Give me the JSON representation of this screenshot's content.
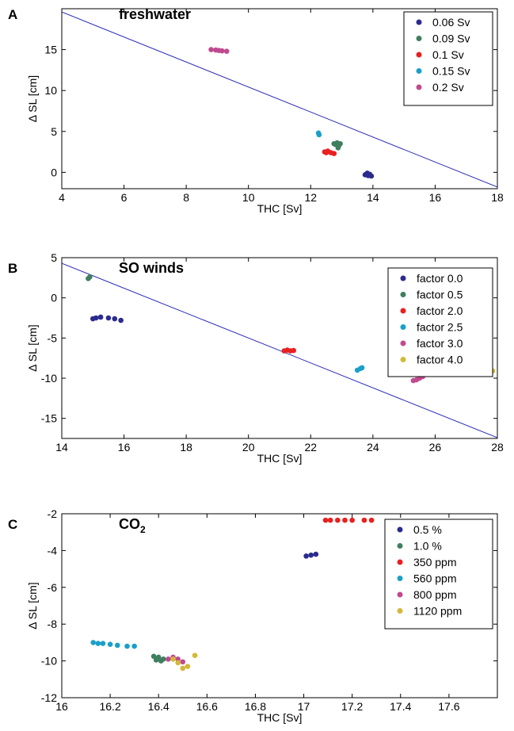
{
  "chart_data": [
    {
      "type": "scatter",
      "panel_letter": "A",
      "title": "freshwater",
      "xlabel": "THC [Sv]",
      "ylabel": "Δ SL [cm]",
      "xlim": [
        4,
        18
      ],
      "ylim": [
        -2,
        20
      ],
      "xticks": [
        4,
        6,
        8,
        10,
        12,
        14,
        16,
        18
      ],
      "yticks": [
        0,
        5,
        10,
        15
      ],
      "legend_position": "top-right",
      "line": {
        "x": [
          4,
          18
        ],
        "y": [
          19.6,
          -1.8
        ],
        "color": "#2b2bb5"
      },
      "series": [
        {
          "name": "0.06 Sv",
          "color": "#2b2b8f",
          "points": [
            [
              13.75,
              -0.3
            ],
            [
              13.8,
              -0.2
            ],
            [
              13.85,
              -0.4
            ],
            [
              13.9,
              -0.25
            ],
            [
              13.95,
              -0.45
            ],
            [
              13.82,
              -0.1
            ]
          ]
        },
        {
          "name": "0.09 Sv",
          "color": "#3f7f5f",
          "points": [
            [
              12.75,
              3.5
            ],
            [
              12.8,
              3.4
            ],
            [
              12.85,
              3.6
            ],
            [
              12.9,
              3.2
            ],
            [
              12.95,
              3.5
            ],
            [
              12.88,
              3.0
            ]
          ]
        },
        {
          "name": "0.1 Sv",
          "color": "#e82020",
          "points": [
            [
              12.45,
              2.5
            ],
            [
              12.5,
              2.4
            ],
            [
              12.55,
              2.6
            ],
            [
              12.65,
              2.4
            ],
            [
              12.75,
              2.3
            ]
          ]
        },
        {
          "name": "0.15 Sv",
          "color": "#1aa0c8",
          "points": [
            [
              12.25,
              4.8
            ],
            [
              12.27,
              4.6
            ]
          ]
        },
        {
          "name": "0.2 Sv",
          "color": "#c04a90",
          "points": [
            [
              8.8,
              15.0
            ],
            [
              8.95,
              14.95
            ],
            [
              9.05,
              14.9
            ],
            [
              9.15,
              14.85
            ],
            [
              9.3,
              14.8
            ]
          ]
        }
      ]
    },
    {
      "type": "scatter",
      "panel_letter": "B",
      "title": "SO winds",
      "xlabel": "THC [Sv]",
      "ylabel": "Δ SL [cm]",
      "xlim": [
        14,
        28
      ],
      "ylim": [
        -17.5,
        5
      ],
      "xticks": [
        14,
        16,
        18,
        20,
        22,
        24,
        26,
        28
      ],
      "yticks": [
        5,
        0,
        -5,
        -10,
        -15
      ],
      "legend_position": "top-right",
      "line": {
        "x": [
          14,
          28
        ],
        "y": [
          4.3,
          -17.4
        ],
        "color": "#2b2bb5"
      },
      "series": [
        {
          "name": "factor 0.0",
          "color": "#2b2b8f",
          "points": [
            [
              15.0,
              -2.6
            ],
            [
              15.1,
              -2.5
            ],
            [
              15.25,
              -2.4
            ],
            [
              15.5,
              -2.5
            ],
            [
              15.7,
              -2.6
            ],
            [
              15.9,
              -2.8
            ]
          ]
        },
        {
          "name": "factor 0.5",
          "color": "#3f7f5f",
          "points": [
            [
              14.85,
              2.4
            ],
            [
              14.9,
              2.6
            ]
          ]
        },
        {
          "name": "factor 2.0",
          "color": "#e82020",
          "points": [
            [
              21.15,
              -6.6
            ],
            [
              21.25,
              -6.5
            ],
            [
              21.35,
              -6.6
            ],
            [
              21.45,
              -6.55
            ]
          ]
        },
        {
          "name": "factor 2.5",
          "color": "#1aa0c8",
          "points": [
            [
              23.5,
              -9.0
            ],
            [
              23.6,
              -8.8
            ],
            [
              23.65,
              -8.7
            ]
          ]
        },
        {
          "name": "factor 3.0",
          "color": "#c04a90",
          "points": [
            [
              25.3,
              -10.3
            ],
            [
              25.4,
              -10.2
            ],
            [
              25.5,
              -10.0
            ],
            [
              25.6,
              -9.8
            ]
          ]
        },
        {
          "name": "factor 4.0",
          "color": "#d4b838",
          "points": [
            [
              27.5,
              -9.5
            ],
            [
              27.6,
              -9.4
            ],
            [
              27.75,
              -9.3
            ],
            [
              27.85,
              -9.1
            ]
          ]
        }
      ]
    },
    {
      "type": "scatter",
      "panel_letter": "C",
      "title": "CO",
      "title_sub": "2",
      "xlabel": "THC [Sv]",
      "ylabel": "Δ SL [cm]",
      "xlim": [
        16,
        17.8
      ],
      "ylim": [
        -12,
        -2
      ],
      "xticks": [
        16,
        16.2,
        16.4,
        16.6,
        16.8,
        17,
        17.2,
        17.4,
        17.6
      ],
      "yticks": [
        -2,
        -4,
        -6,
        -8,
        -10,
        -12
      ],
      "legend_position": "top-right",
      "series": [
        {
          "name": "0.5 %",
          "color": "#2b2b8f",
          "points": [
            [
              17.01,
              -4.3
            ],
            [
              17.03,
              -4.25
            ],
            [
              17.05,
              -4.2
            ]
          ]
        },
        {
          "name": "1.0 %",
          "color": "#3f7f5f",
          "points": [
            [
              16.38,
              -9.75
            ],
            [
              16.39,
              -9.95
            ],
            [
              16.4,
              -9.8
            ],
            [
              16.41,
              -10.0
            ],
            [
              16.42,
              -9.9
            ]
          ]
        },
        {
          "name": "350 ppm",
          "color": "#e82020",
          "points": [
            [
              17.09,
              -2.35
            ],
            [
              17.11,
              -2.35
            ],
            [
              17.14,
              -2.35
            ],
            [
              17.17,
              -2.35
            ],
            [
              17.2,
              -2.35
            ],
            [
              17.25,
              -2.35
            ],
            [
              17.28,
              -2.35
            ]
          ]
        },
        {
          "name": "560 ppm",
          "color": "#1aa0c8",
          "points": [
            [
              16.13,
              -9.0
            ],
            [
              16.15,
              -9.05
            ],
            [
              16.17,
              -9.05
            ],
            [
              16.2,
              -9.1
            ],
            [
              16.23,
              -9.15
            ],
            [
              16.27,
              -9.2
            ],
            [
              16.3,
              -9.2
            ]
          ]
        },
        {
          "name": "800 ppm",
          "color": "#c04a90",
          "points": [
            [
              16.44,
              -9.9
            ],
            [
              16.46,
              -9.8
            ],
            [
              16.48,
              -9.9
            ],
            [
              16.5,
              -10.05
            ]
          ]
        },
        {
          "name": "1120 ppm",
          "color": "#d4b838",
          "points": [
            [
              16.46,
              -9.9
            ],
            [
              16.48,
              -10.1
            ],
            [
              16.5,
              -10.4
            ],
            [
              16.52,
              -10.3
            ],
            [
              16.55,
              -9.7
            ]
          ]
        }
      ]
    }
  ]
}
